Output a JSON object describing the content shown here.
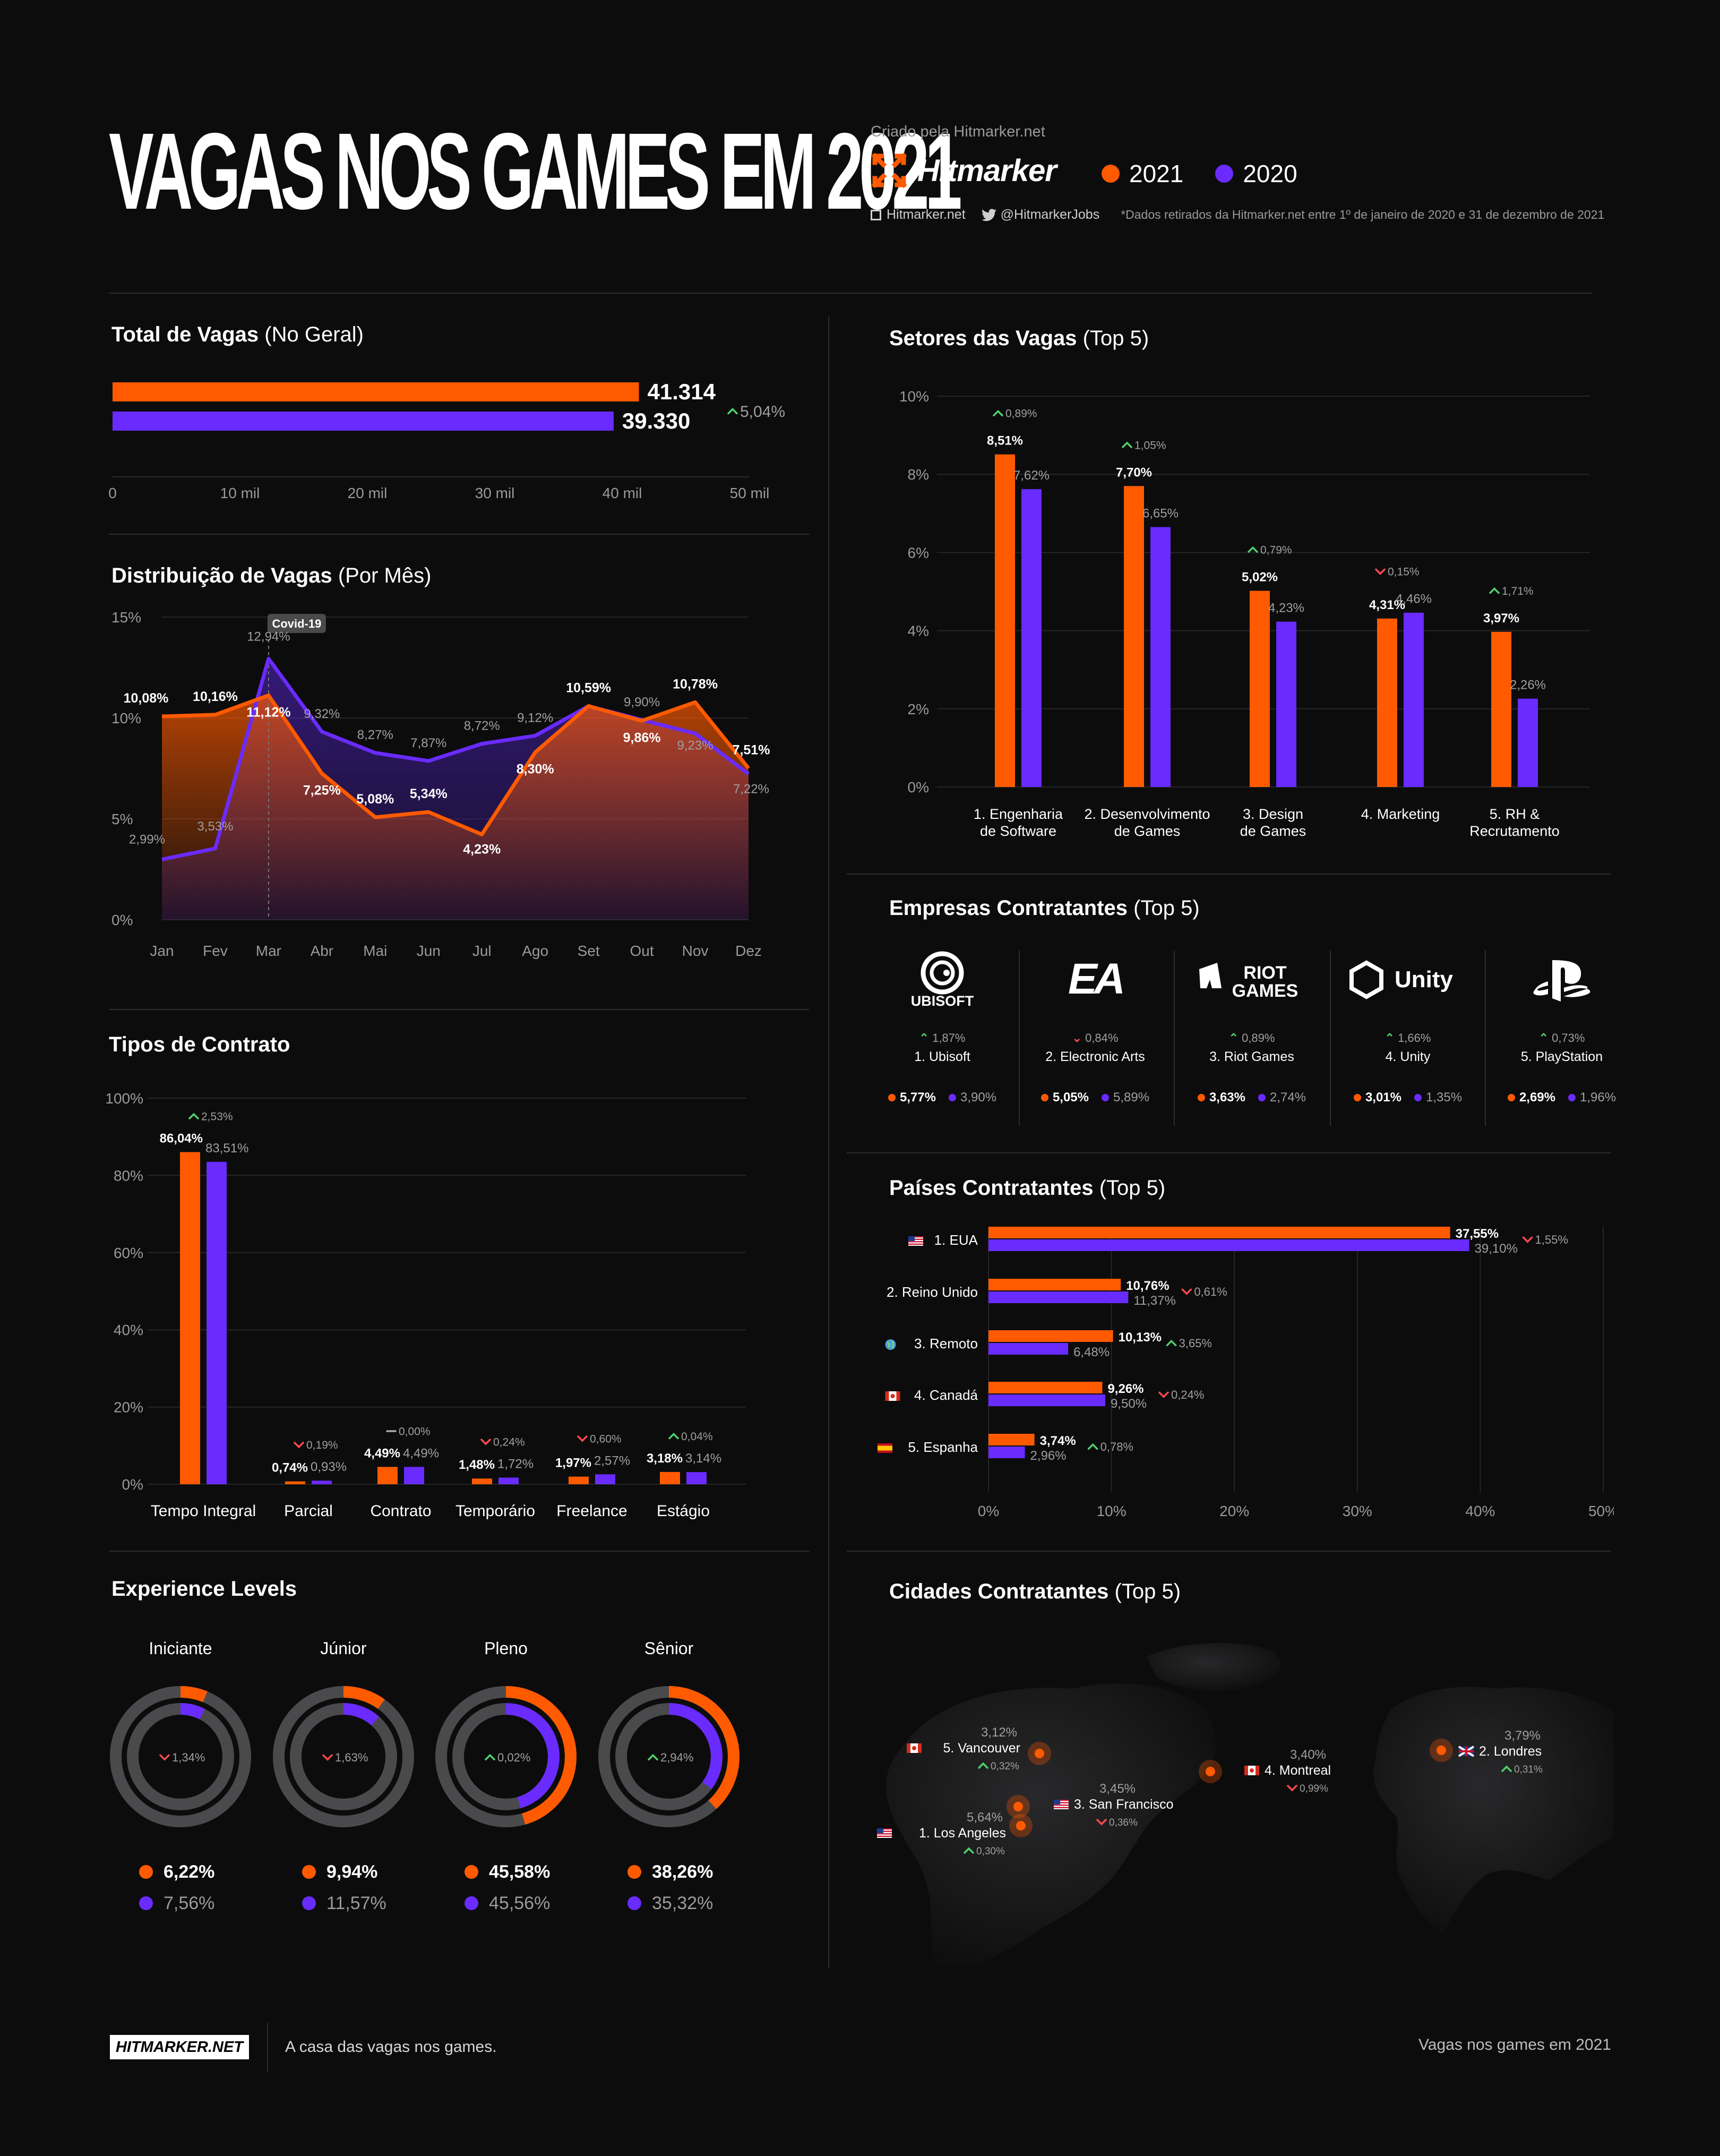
{
  "header": {
    "title": "VAGAS NOS GAMES EM 2021",
    "created_by": "Criado pela Hitmarker.net",
    "logo_text": "Hitmarker",
    "legend": [
      {
        "label": "2021",
        "color": "#ff5a00"
      },
      {
        "label": "2020",
        "color": "#6a2bff"
      }
    ],
    "site": "Hitmarker.net",
    "twitter": "@HitmarkerJobs",
    "note": "*Dados retirados da Hitmarker.net entre 1º de janeiro de 2020 e 31 de dezembro de 2021"
  },
  "colors": {
    "y2021": "#ff5a00",
    "y2020": "#6a2bff",
    "up": "#4fd16b",
    "down": "#ff4a4a"
  },
  "sections": {
    "total_title": "Total de Vagas",
    "total_sub": "(No Geral)",
    "dist_title": "Distribuição de Vagas",
    "dist_sub": "(Por Mês)",
    "contract_title": "Tipos de Contrato",
    "exp_title": "Experience Levels",
    "sector_title": "Setores das Vagas",
    "sector_sub": "(Top 5)",
    "companies_title": "Empresas Contratantes",
    "companies_sub": "(Top 5)",
    "countries_title": "Países Contratantes",
    "countries_sub": "(Top 5)",
    "cities_title": "Cidades Contratantes",
    "cities_sub": "(Top 5)"
  },
  "chart_data": [
    {
      "id": "total",
      "type": "bar",
      "orientation": "horizontal",
      "title": "Total de Vagas (No Geral)",
      "series": [
        {
          "name": "2021",
          "values": [
            41314
          ],
          "label": "41.314"
        },
        {
          "name": "2020",
          "values": [
            39330
          ],
          "label": "39.330"
        }
      ],
      "change": {
        "dir": "up",
        "label": "5,04%"
      },
      "xlim": [
        0,
        50000
      ],
      "ticks": [
        0,
        10000,
        20000,
        30000,
        40000,
        50000
      ],
      "tick_labels": [
        "0",
        "10 mil",
        "20 mil",
        "30 mil",
        "40 mil",
        "50 mil"
      ]
    },
    {
      "id": "monthly",
      "type": "area",
      "title": "Distribuição de Vagas (Por Mês)",
      "categories": [
        "Jan",
        "Fev",
        "Mar",
        "Abr",
        "Mai",
        "Jun",
        "Jul",
        "Ago",
        "Set",
        "Out",
        "Nov",
        "Dez"
      ],
      "series": [
        {
          "name": "2021",
          "values": [
            10.08,
            10.16,
            11.12,
            7.25,
            5.08,
            5.34,
            4.23,
            8.3,
            10.59,
            9.86,
            10.78,
            7.51
          ],
          "labels": [
            "10,08%",
            "10,16%",
            "11,12%",
            "7,25%",
            "5,08%",
            "5,34%",
            "4,23%",
            "8,30%",
            "10,59%",
            "9,86%",
            "10,78%",
            "7,51%"
          ]
        },
        {
          "name": "2020",
          "values": [
            2.99,
            3.53,
            12.94,
            9.32,
            8.27,
            7.87,
            8.72,
            9.12,
            10.59,
            9.9,
            9.23,
            7.22
          ],
          "labels": [
            "2,99%",
            "3,53%",
            "12,94%",
            "9,32%",
            "8,27%",
            "7,87%",
            "8,72%",
            "9,12%",
            "",
            "9,90%",
            "9,23%",
            "7,22%"
          ]
        }
      ],
      "annotation": {
        "label": "Covid-19",
        "at": "Mar"
      },
      "ylim": [
        0,
        15
      ],
      "yticks": [
        "0%",
        "5%",
        "10%",
        "15%"
      ]
    },
    {
      "id": "contracts",
      "type": "bar",
      "title": "Tipos de Contrato",
      "categories": [
        "Tempo Integral",
        "Parcial",
        "Contrato",
        "Temporário",
        "Freelance",
        "Estágio"
      ],
      "series": [
        {
          "name": "2021",
          "values": [
            86.04,
            0.74,
            4.49,
            1.48,
            1.97,
            3.18
          ],
          "labels": [
            "86,04%",
            "0,74%",
            "4,49%",
            "1,48%",
            "1,97%",
            "3,18%"
          ]
        },
        {
          "name": "2020",
          "values": [
            83.51,
            0.93,
            4.49,
            1.72,
            2.57,
            3.14
          ],
          "labels": [
            "83,51%",
            "0,93%",
            "4,49%",
            "1,72%",
            "2,57%",
            "3,14%"
          ]
        }
      ],
      "changes": [
        {
          "dir": "up",
          "label": "2,53%"
        },
        {
          "dir": "down",
          "label": "0,19%"
        },
        {
          "dir": "flat",
          "label": "0,00%"
        },
        {
          "dir": "down",
          "label": "0,24%"
        },
        {
          "dir": "down",
          "label": "0,60%"
        },
        {
          "dir": "up",
          "label": "0,04%"
        }
      ],
      "ylim": [
        0,
        100
      ],
      "yticks": [
        "0%",
        "20%",
        "40%",
        "60%",
        "80%",
        "100%"
      ]
    },
    {
      "id": "experience",
      "type": "pie",
      "title": "Experience Levels",
      "categories": [
        "Iniciante",
        "Júnior",
        "Pleno",
        "Sênior"
      ],
      "series": [
        {
          "name": "2021",
          "values": [
            6.22,
            9.94,
            45.58,
            38.26
          ],
          "labels": [
            "6,22%",
            "9,94%",
            "45,58%",
            "38,26%"
          ]
        },
        {
          "name": "2020",
          "values": [
            7.56,
            11.57,
            45.56,
            35.32
          ],
          "labels": [
            "7,56%",
            "11,57%",
            "45,56%",
            "35,32%"
          ]
        }
      ],
      "changes": [
        {
          "dir": "down",
          "label": "1,34%"
        },
        {
          "dir": "down",
          "label": "1,63%"
        },
        {
          "dir": "up",
          "label": "0,02%"
        },
        {
          "dir": "up",
          "label": "2,94%"
        }
      ]
    },
    {
      "id": "sectors",
      "type": "bar",
      "title": "Setores das Vagas (Top 5)",
      "categories": [
        "1. Engenharia|de Software",
        "2. Desenvolvimento|de Games",
        "3. Design|de Games",
        "4. Marketing",
        "5. RH &|Recrutamento"
      ],
      "series": [
        {
          "name": "2021",
          "values": [
            8.51,
            7.7,
            5.02,
            4.31,
            3.97
          ],
          "labels": [
            "8,51%",
            "7,70%",
            "5,02%",
            "4,31%",
            "3,97%"
          ]
        },
        {
          "name": "2020",
          "values": [
            7.62,
            6.65,
            4.23,
            4.46,
            2.26
          ],
          "labels": [
            "7,62%",
            "6,65%",
            "4,23%",
            "4,46%",
            "2,26%"
          ]
        }
      ],
      "changes": [
        {
          "dir": "up",
          "label": "0,89%"
        },
        {
          "dir": "up",
          "label": "1,05%"
        },
        {
          "dir": "up",
          "label": "0,79%"
        },
        {
          "dir": "down",
          "label": "0,15%"
        },
        {
          "dir": "up",
          "label": "1,71%"
        }
      ],
      "ylim": [
        0,
        10
      ],
      "yticks": [
        "0%",
        "2%",
        "4%",
        "6%",
        "8%",
        "10%"
      ]
    },
    {
      "id": "countries",
      "type": "bar",
      "orientation": "horizontal",
      "title": "Países Contratantes (Top 5)",
      "categories": [
        "1. EUA",
        "2. Reino Unido",
        "3. Remoto",
        "4. Canadá",
        "5. Espanha"
      ],
      "series": [
        {
          "name": "2021",
          "values": [
            37.55,
            10.76,
            10.13,
            9.26,
            3.74
          ],
          "labels": [
            "37,55%",
            "10,76%",
            "10,13%",
            "9,26%",
            "3,74%"
          ]
        },
        {
          "name": "2020",
          "values": [
            39.1,
            11.37,
            6.48,
            9.5,
            2.96
          ],
          "labels": [
            "39,10%",
            "11,37%",
            "6,48%",
            "9,50%",
            "2,96%"
          ]
        }
      ],
      "changes": [
        {
          "dir": "down",
          "label": "1,55%"
        },
        {
          "dir": "down",
          "label": "0,61%"
        },
        {
          "dir": "up",
          "label": "3,65%"
        },
        {
          "dir": "down",
          "label": "0,24%"
        },
        {
          "dir": "up",
          "label": "0,78%"
        }
      ],
      "flags": [
        "us-flag-icon",
        "uk-flag-icon",
        "globe-icon",
        "canada-flag-icon",
        "spain-flag-icon"
      ],
      "xlim": [
        0,
        50
      ],
      "xticks": [
        "0%",
        "10%",
        "20%",
        "30%",
        "40%",
        "50%"
      ]
    }
  ],
  "companies": [
    {
      "logo": "UBISOFT",
      "name": "1. Ubisoft",
      "change": {
        "dir": "up",
        "label": "1,87%"
      },
      "v2021": "5,77%",
      "v2020": "3,90%"
    },
    {
      "logo": "EA",
      "name": "2. Electronic Arts",
      "change": {
        "dir": "down",
        "label": "0,84%"
      },
      "v2021": "5,05%",
      "v2020": "5,89%"
    },
    {
      "logo": "RIOT|GAMES",
      "name": "3. Riot Games",
      "change": {
        "dir": "up",
        "label": "0,89%"
      },
      "v2021": "3,63%",
      "v2020": "2,74%"
    },
    {
      "logo": "Unity",
      "name": "4. Unity",
      "change": {
        "dir": "up",
        "label": "1,66%"
      },
      "v2021": "3,01%",
      "v2020": "1,35%"
    },
    {
      "logo": "",
      "name": "5. PlayStation",
      "change": {
        "dir": "up",
        "label": "0,73%"
      },
      "v2021": "2,69%",
      "v2020": "1,96%"
    }
  ],
  "cities": [
    {
      "name": "5. Vancouver",
      "flag": "canada-flag-icon",
      "value": "3,12%",
      "change": {
        "dir": "up",
        "label": "0,32%"
      }
    },
    {
      "name": "2. Londres",
      "flag": "uk-flag-icon",
      "value": "3,79%",
      "change": {
        "dir": "up",
        "label": "0,31%"
      }
    },
    {
      "name": "4. Montreal",
      "flag": "canada-flag-icon",
      "value": "3,40%",
      "change": {
        "dir": "down",
        "label": "0,99%"
      }
    },
    {
      "name": "3. San Francisco",
      "flag": "us-flag-icon",
      "value": "3,45%",
      "change": {
        "dir": "down",
        "label": "0,36%"
      }
    },
    {
      "name": "1. Los Angeles",
      "flag": "us-flag-icon",
      "value": "5,64%",
      "change": {
        "dir": "up",
        "label": "0,30%"
      }
    }
  ],
  "footer": {
    "badge": "HITMARKER.NET",
    "tagline": "A casa das vagas nos games.",
    "right": "Vagas nos games em 2021"
  }
}
